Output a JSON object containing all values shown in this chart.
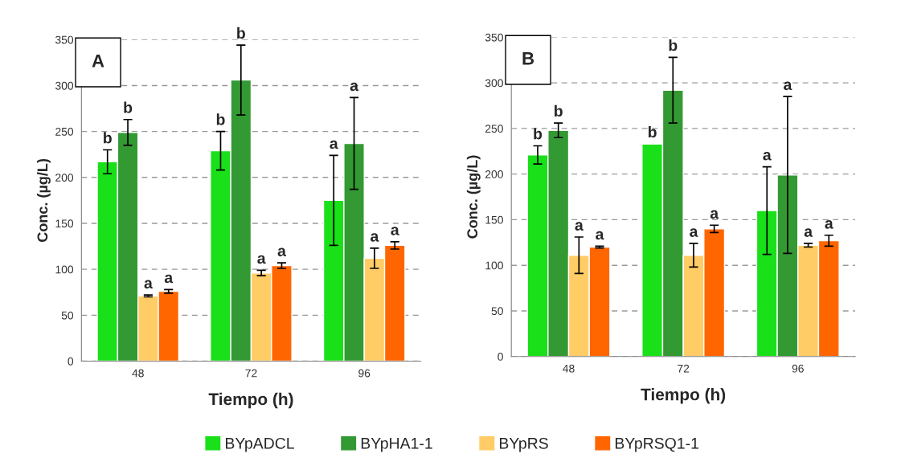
{
  "chart_data": [
    {
      "type": "bar",
      "categories": [
        "48",
        "72",
        "96"
      ],
      "xlabel": "Tiempo (h)",
      "ylabel": "Conc. (µg/L)",
      "ylim": [
        0,
        350
      ],
      "yticks": [
        0,
        50,
        100,
        150,
        200,
        250,
        300,
        350
      ],
      "grid": "y",
      "legend": "bottom",
      "annotations": [
        "A",
        "b",
        "b",
        "a",
        "b",
        "b",
        "a",
        "a",
        "a",
        "a",
        "a",
        "a",
        "a"
      ],
      "series": [
        {
          "name": "BYpADCL",
          "color": "#19e019",
          "values": [
            217,
            229,
            175
          ],
          "errors": [
            13,
            21,
            49
          ]
        },
        {
          "name": "BYpHA1-1",
          "color": "#339933",
          "values": [
            249,
            306,
            237
          ],
          "errors": [
            14,
            38,
            50
          ]
        },
        {
          "name": "BYpRS",
          "color": "#ffcc66",
          "values": [
            71,
            96,
            112
          ],
          "errors": [
            1,
            3,
            11
          ]
        },
        {
          "name": "BYpRSQ1-1",
          "color": "#ff6600",
          "values": [
            76,
            104,
            126
          ],
          "errors": [
            2,
            3,
            4
          ]
        }
      ]
    },
    {
      "type": "bar",
      "categories": [
        "48",
        "72",
        "96"
      ],
      "xlabel": "Tiempo (h)",
      "ylabel": "Conc. (µg/L)",
      "ylim": [
        0,
        350
      ],
      "yticks": [
        0,
        50,
        100,
        150,
        200,
        250,
        300,
        350
      ],
      "grid": "y",
      "annotations": [
        "B",
        "b",
        "b",
        "a",
        "b",
        "b",
        "a",
        "a",
        "a",
        "a",
        "a",
        "a",
        "a"
      ],
      "series": [
        {
          "color": "#19e019",
          "values": [
            221,
            233,
            160
          ],
          "errors": [
            10,
            null,
            48
          ]
        },
        {
          "color": "#339933",
          "values": [
            248,
            292,
            199
          ],
          "errors": [
            8,
            36,
            86
          ]
        },
        {
          "color": "#ffcc66",
          "values": [
            111,
            111,
            122
          ],
          "errors": [
            20,
            13,
            2
          ]
        },
        {
          "color": "#ff6600",
          "values": [
            120,
            140,
            127
          ],
          "errors": [
            1,
            4,
            6
          ]
        }
      ]
    }
  ]
}
